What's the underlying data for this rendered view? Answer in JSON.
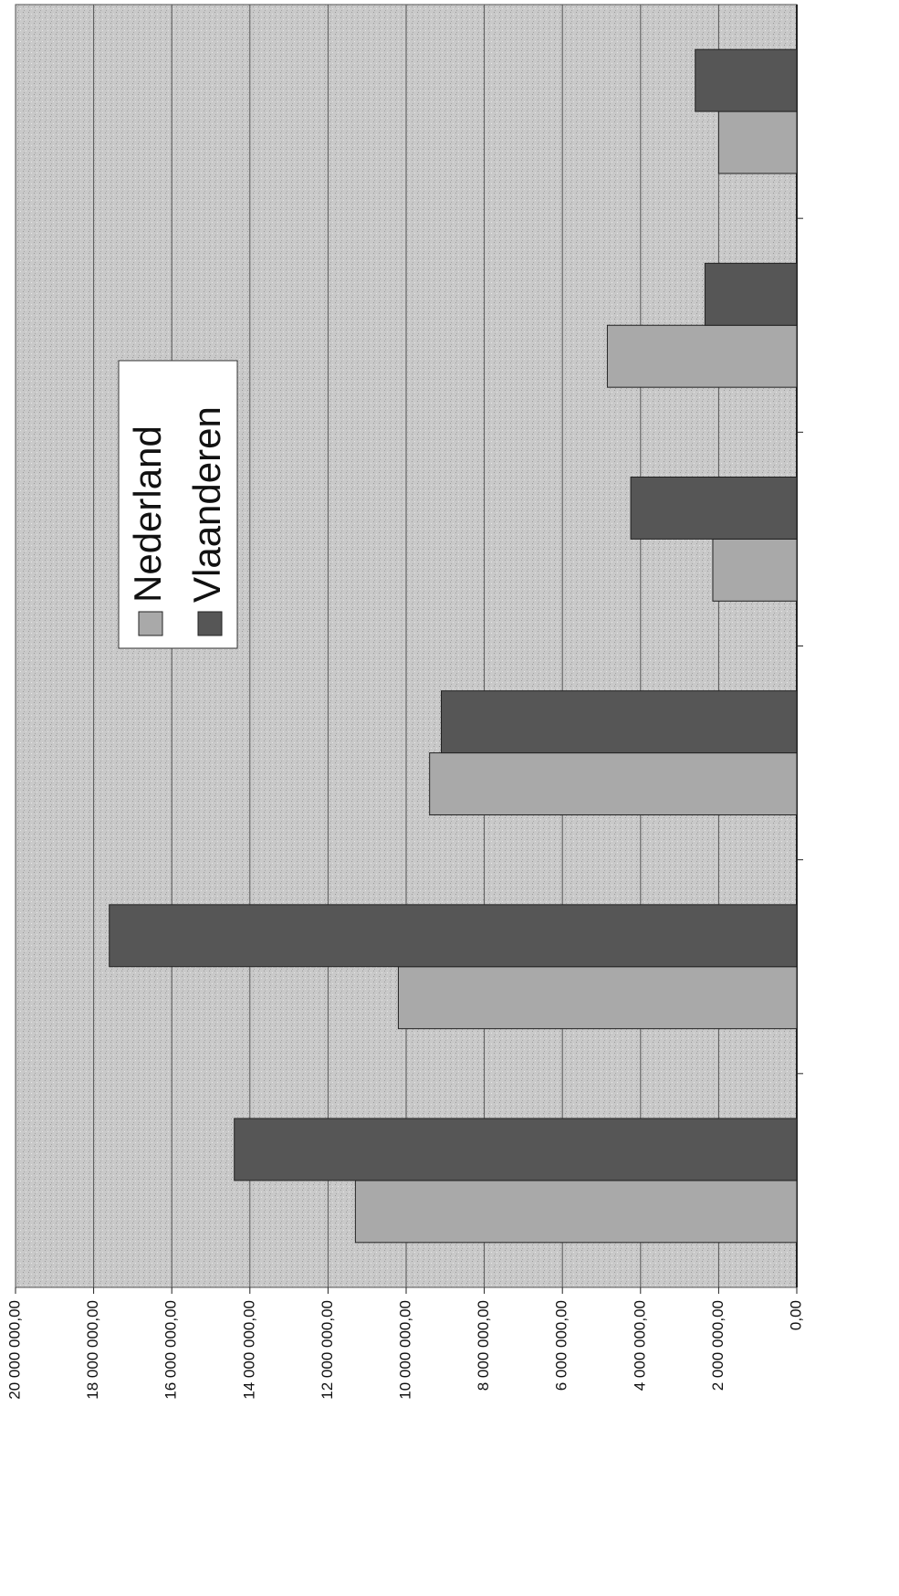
{
  "chart_data": {
    "type": "bar",
    "orientation": "horizontal",
    "categories": [
      null,
      null,
      null,
      null,
      null,
      null
    ],
    "series": [
      {
        "name": "Nederland",
        "color": "#a9a9a9",
        "values": [
          11300000,
          10200000,
          9400000,
          2150000,
          4850000,
          2000000
        ]
      },
      {
        "name": "Vlaanderen",
        "color": "#565656",
        "values": [
          14400000,
          17600000,
          9100000,
          4250000,
          2350000,
          2600000
        ]
      }
    ],
    "ylim": [
      0,
      20000000
    ],
    "yticks": [
      {
        "value": 0,
        "label": "0,00"
      },
      {
        "value": 2000000,
        "label": "2 000 000,00"
      },
      {
        "value": 4000000,
        "label": "4 000 000,00"
      },
      {
        "value": 6000000,
        "label": "6 000 000,00"
      },
      {
        "value": 8000000,
        "label": "8 000 000,00"
      },
      {
        "value": 10000000,
        "label": "10 000 000,00"
      },
      {
        "value": 12000000,
        "label": "12 000 000,00"
      },
      {
        "value": 14000000,
        "label": "14 000 000,00"
      },
      {
        "value": 16000000,
        "label": "16 000 000,00"
      },
      {
        "value": 18000000,
        "label": "18 000 000,00"
      },
      {
        "value": 20000000,
        "label": "20 000 000,00"
      }
    ],
    "grid": true,
    "legend": "left"
  }
}
